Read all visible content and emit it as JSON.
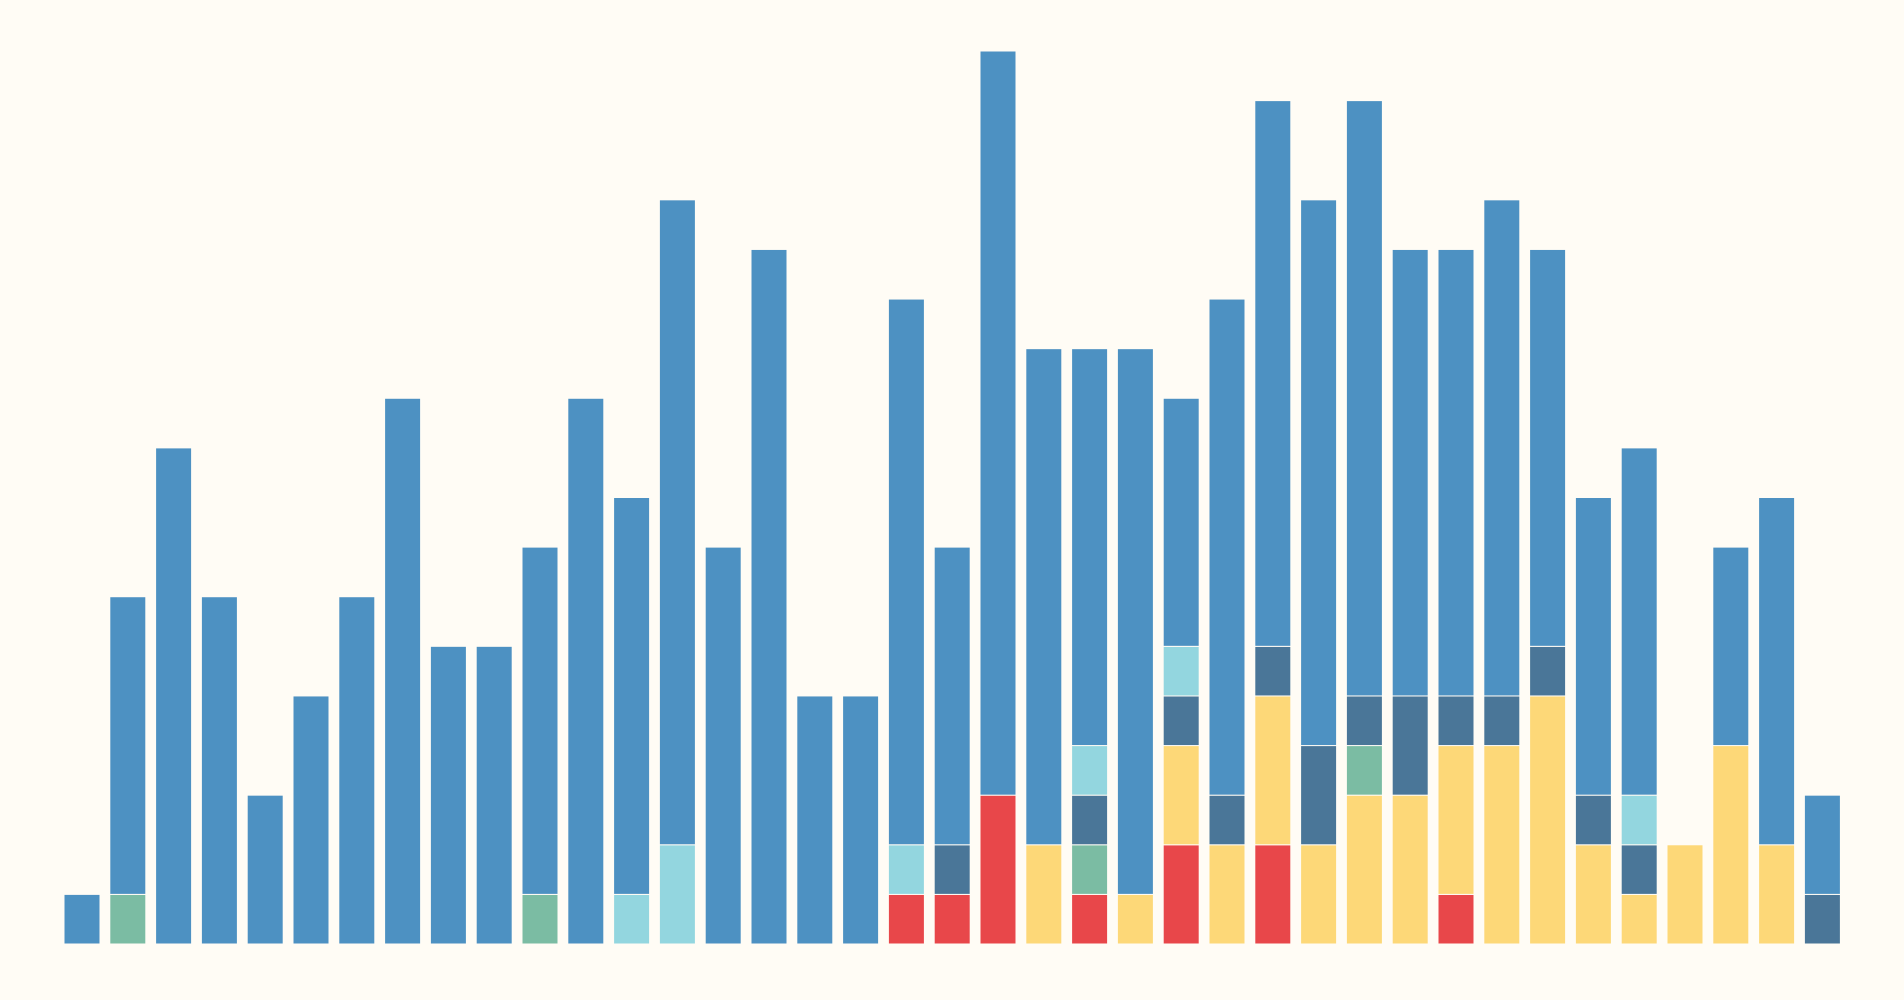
{
  "chart_data": {
    "type": "bar",
    "stacked": true,
    "ylim": [
      0,
      18
    ],
    "series": [
      {
        "color": "#e8474a",
        "values": [
          0,
          0,
          0,
          0,
          0,
          0,
          0,
          0,
          0,
          0,
          0,
          0,
          0,
          0,
          0,
          0,
          0,
          0,
          1,
          1,
          3,
          0,
          1,
          0,
          2,
          0,
          2,
          0,
          0,
          0,
          1,
          0,
          0,
          0,
          0,
          0,
          0,
          0,
          0
        ]
      },
      {
        "color": "#fdd878",
        "values": [
          0,
          0,
          0,
          0,
          0,
          0,
          0,
          0,
          0,
          0,
          0,
          0,
          0,
          0,
          0,
          0,
          0,
          0,
          0,
          0,
          0,
          2,
          0,
          1,
          2,
          2,
          3,
          2,
          3,
          3,
          3,
          4,
          5,
          2,
          1,
          2,
          4,
          2,
          0
        ]
      },
      {
        "color": "#7bbca3",
        "values": [
          0,
          1,
          0,
          0,
          0,
          0,
          0,
          0,
          0,
          0,
          1,
          0,
          0,
          0,
          0,
          0,
          0,
          0,
          0,
          0,
          0,
          0,
          1,
          0,
          0,
          0,
          0,
          0,
          1,
          0,
          0,
          0,
          0,
          0,
          0,
          0,
          0,
          0,
          0
        ]
      },
      {
        "color": "#4a7698",
        "values": [
          0,
          0,
          0,
          0,
          0,
          0,
          0,
          0,
          0,
          0,
          0,
          0,
          0,
          0,
          0,
          0,
          0,
          0,
          0,
          1,
          0,
          0,
          1,
          0,
          1,
          1,
          1,
          2,
          1,
          2,
          1,
          1,
          1,
          1,
          1,
          0,
          0,
          0,
          1
        ]
      },
      {
        "color": "#93d6df",
        "values": [
          0,
          0,
          0,
          0,
          0,
          0,
          0,
          0,
          0,
          0,
          0,
          0,
          1,
          2,
          0,
          0,
          0,
          0,
          1,
          0,
          0,
          0,
          1,
          0,
          1,
          0,
          0,
          0,
          0,
          0,
          0,
          0,
          0,
          0,
          1,
          0,
          0,
          0,
          0
        ]
      },
      {
        "color": "#4d91c2",
        "values": [
          1,
          6,
          10,
          7,
          3,
          5,
          7,
          11,
          6,
          6,
          7,
          11,
          8,
          13,
          8,
          14,
          5,
          5,
          11,
          6,
          15,
          10,
          8,
          11,
          5,
          10,
          11,
          11,
          12,
          9,
          9,
          10,
          8,
          6,
          7,
          0,
          4,
          7,
          2
        ]
      }
    ]
  }
}
